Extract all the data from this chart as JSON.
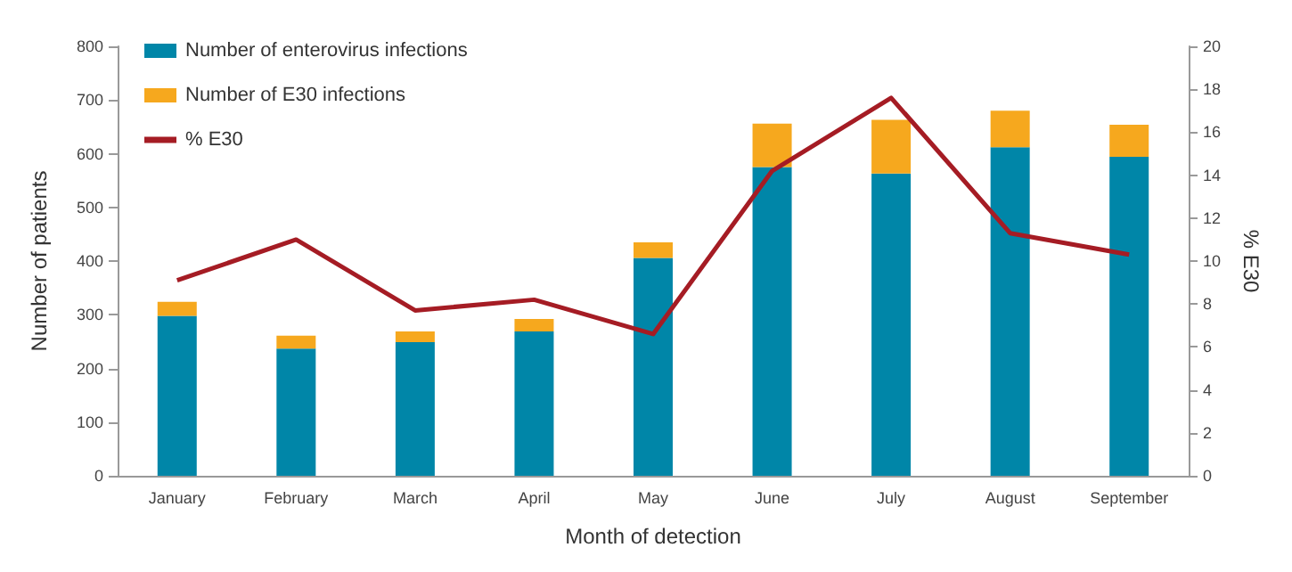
{
  "chart_data": {
    "type": "bar",
    "xlabel": "Month of detection",
    "ylabel": "Number of patients",
    "y2label": "% E30",
    "categories": [
      "January",
      "February",
      "March",
      "April",
      "May",
      "June",
      "July",
      "August",
      "September"
    ],
    "stacked": true,
    "series": [
      {
        "name": "Number of enterovirus infections",
        "color": "#0086a8",
        "values": [
          298,
          237,
          249,
          269,
          406,
          575,
          563,
          612,
          594
        ]
      },
      {
        "name": "Number of E30 infections",
        "color": "#f6a81e",
        "values": [
          26,
          24,
          20,
          23,
          29,
          81,
          100,
          68,
          60
        ]
      },
      {
        "name": "% E30",
        "type": "line",
        "axis": "y2",
        "color": "#a51c24",
        "values": [
          9.1,
          11.0,
          7.7,
          8.2,
          6.6,
          14.2,
          17.6,
          11.3,
          10.3
        ]
      }
    ],
    "ylim": [
      0,
      800
    ],
    "yticks": [
      0,
      100,
      200,
      300,
      400,
      500,
      600,
      700,
      800
    ],
    "y2lim": [
      0,
      20
    ],
    "y2ticks": [
      0,
      2,
      4,
      6,
      8,
      10,
      12,
      14,
      16,
      18,
      20
    ],
    "grid": false,
    "legend": "top left",
    "marker": "none"
  }
}
